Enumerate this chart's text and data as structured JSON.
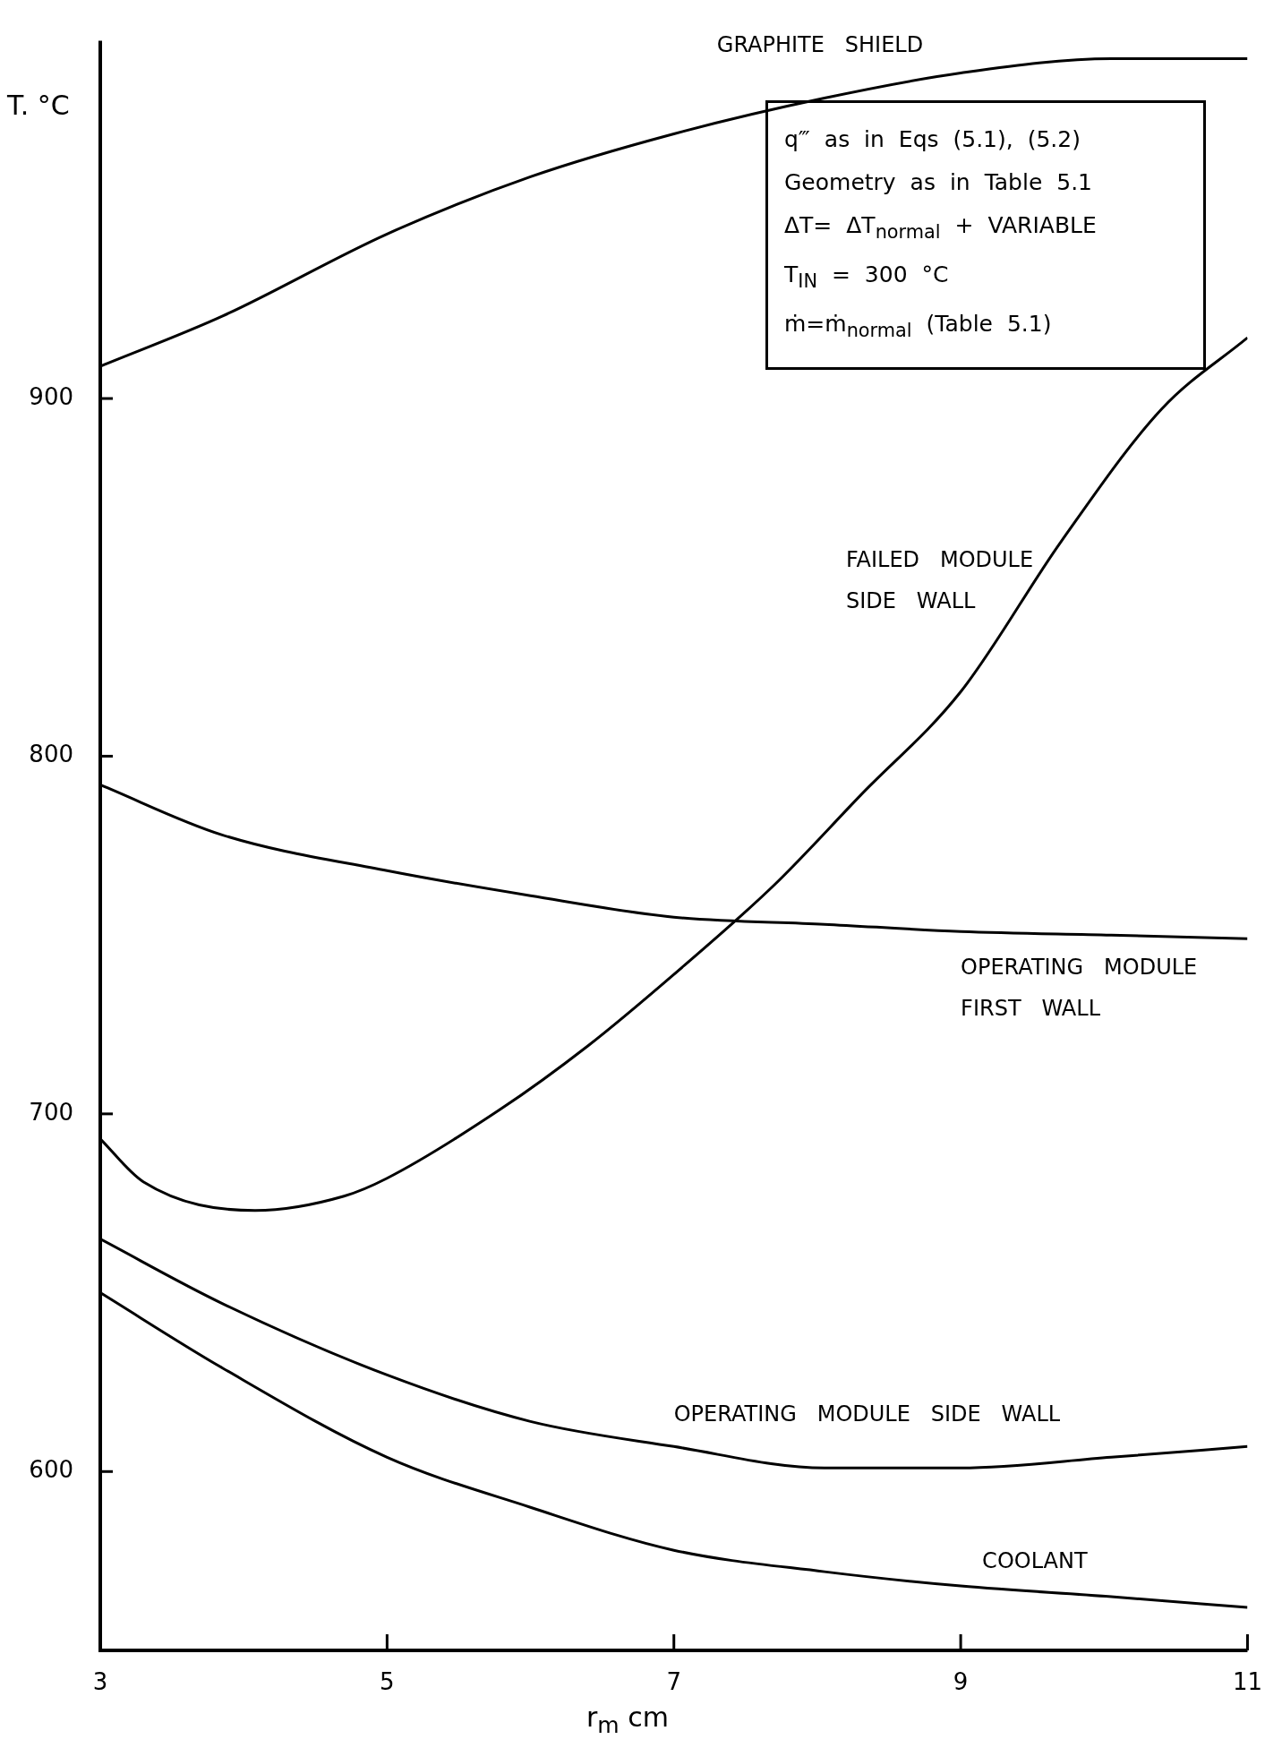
{
  "chart_data": {
    "type": "line",
    "xlabel": "r$_{m}$     cm",
    "ylabel": "T. °C",
    "xlim": [
      3,
      11
    ],
    "xticks": [
      3,
      5,
      7,
      9,
      11
    ],
    "ylim": [
      550,
      1000
    ],
    "yticks": [
      600,
      700,
      800,
      900
    ],
    "grid": false,
    "legend": false,
    "marker": "none",
    "line_style": "solid",
    "x": [
      3,
      3.85,
      5,
      6,
      7,
      8.05,
      9,
      10.05,
      11
    ],
    "series": [
      {
        "name": "GRAPHITE SHIELD",
        "color": "#000000",
        "values": [
          909,
          923,
          946,
          962,
          974,
          984,
          991,
          995,
          995
        ]
      },
      {
        "name": "FAILED MODULE SIDE WALL",
        "color": "#000000",
        "x": [
          3,
          3.3,
          4.08,
          4.7,
          5,
          5.78,
          6.4,
          7,
          7.7,
          8.3,
          9,
          9.7,
          10.4,
          11
        ],
        "values": [
          693,
          681,
          673,
          677,
          682,
          701,
          719,
          739,
          764,
          789,
          818,
          860,
          897,
          917
        ]
      },
      {
        "name": "OPERATING MODULE FIRST WALL",
        "color": "#000000",
        "values": [
          792,
          778,
          768,
          761,
          755,
          753,
          751,
          750,
          749
        ]
      },
      {
        "name": "OPERATING MODULE SIDE WALL",
        "color": "#000000",
        "values": [
          665,
          647,
          627,
          614,
          607,
          601,
          601,
          604,
          607
        ]
      },
      {
        "name": "COOLANT",
        "color": "#000000",
        "values": [
          650,
          629,
          604,
          590,
          578,
          572,
          568,
          565,
          562
        ]
      }
    ],
    "annotations": [
      "q‴  as  in  Eqs  (5.1), (5.2)",
      "Geometry  as  in  Table  5.1",
      "ΔT= ΔT$_{normal}$ + VARIABLE",
      "T$_{IN}$ = 300  °C",
      "ṁ=ṁ$_{normal}$   (Table 5.1)"
    ]
  }
}
